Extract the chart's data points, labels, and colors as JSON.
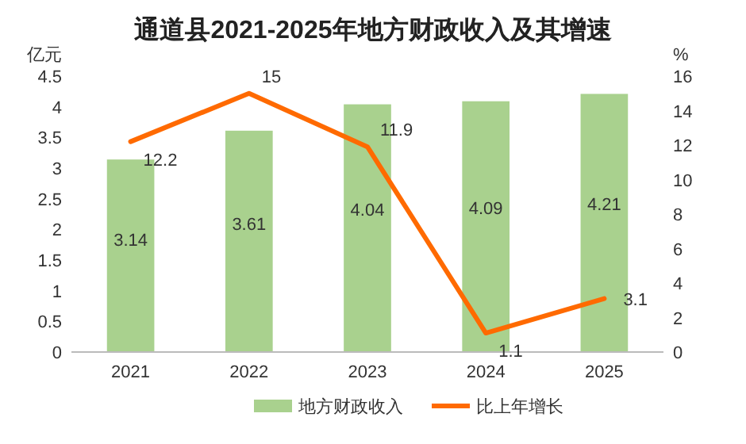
{
  "chart_data": {
    "type": "bar",
    "title": "通道县2021-2025年地方财政收入及其增速",
    "ylabel": "亿元",
    "y2label": "%",
    "categories": [
      "2021",
      "2022",
      "2023",
      "2024",
      "2025"
    ],
    "series": [
      {
        "name": "地方财政收入",
        "color": "#a9d18e",
        "values": [
          3.14,
          3.61,
          4.04,
          4.09,
          4.21
        ]
      },
      {
        "name": "比上年增长",
        "type": "line",
        "axis": "y2",
        "color": "#ff6a00",
        "values": [
          12.2,
          15,
          11.9,
          1.1,
          3.1
        ]
      }
    ],
    "ylim": [
      0,
      4.5
    ],
    "yticks": [
      0,
      0.5,
      1,
      1.5,
      2,
      2.5,
      3,
      3.5,
      4,
      4.5
    ],
    "y2lim": [
      0,
      16
    ],
    "y2ticks": [
      0,
      2,
      4,
      6,
      8,
      10,
      12,
      14,
      16
    ],
    "data_labels": true,
    "legend": "bottom",
    "grid": false
  }
}
